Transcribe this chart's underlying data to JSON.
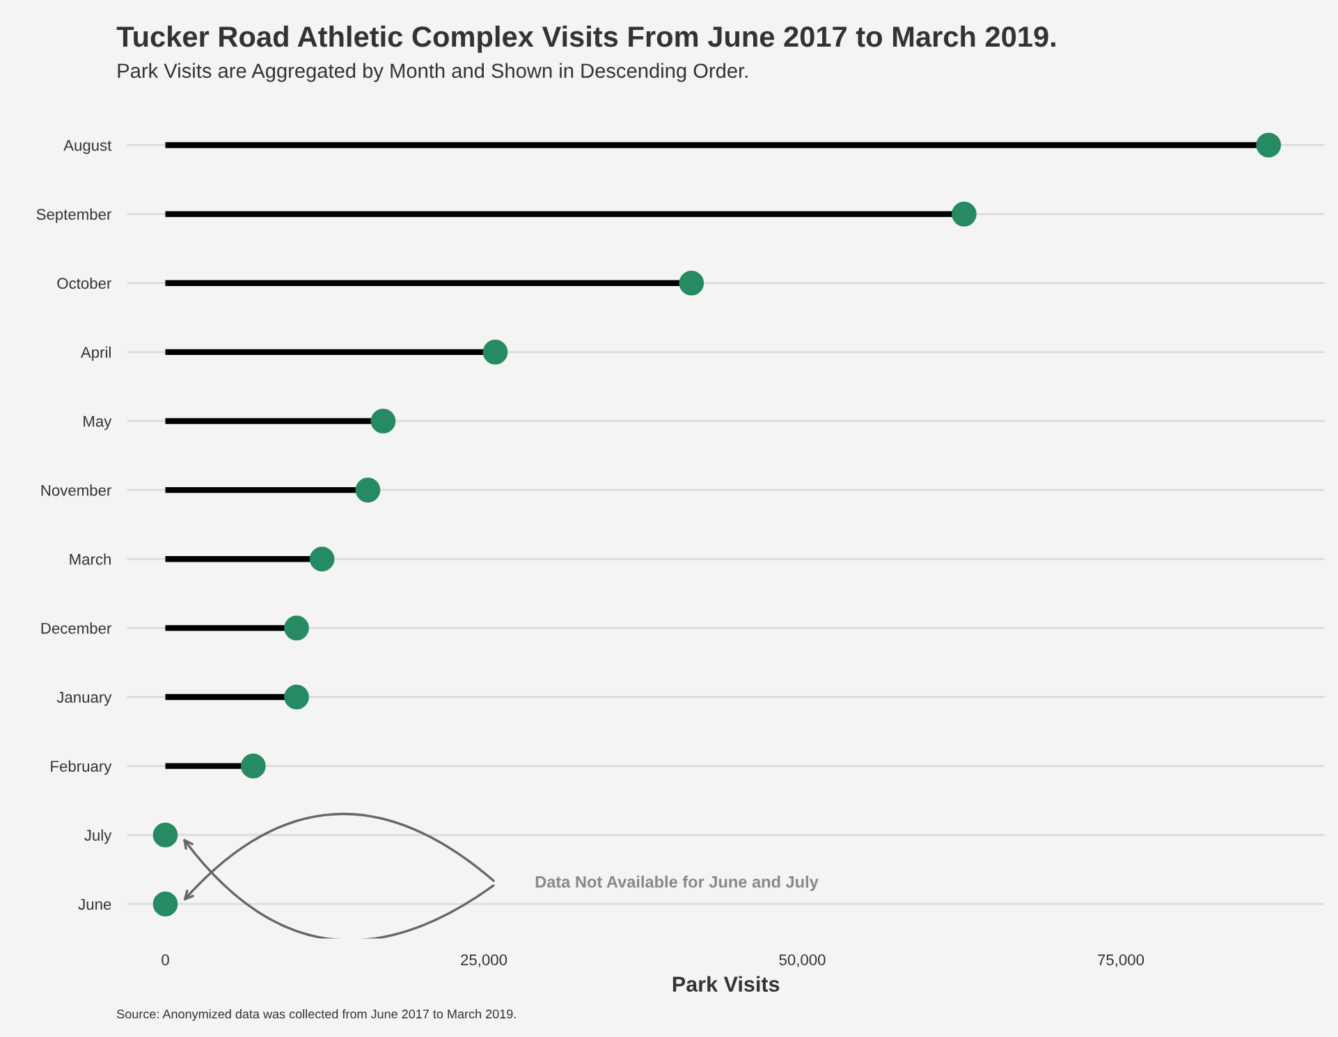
{
  "chart_data": {
    "type": "lollipop",
    "orientation": "horizontal",
    "title": "Tucker Road Athletic Complex Visits From June 2017 to March 2019.",
    "subtitle": "Park Visits are Aggregated by Month and Shown in Descending Order.",
    "xlabel": "Park Visits",
    "categories": [
      "August",
      "September",
      "October",
      "April",
      "May",
      "November",
      "March",
      "December",
      "January",
      "February",
      "July",
      "June"
    ],
    "values": [
      86600,
      62700,
      41300,
      25900,
      17100,
      15900,
      12300,
      10300,
      10300,
      6900,
      0,
      0
    ],
    "color": "#268a63",
    "xlim": [
      -3000,
      91000
    ],
    "xticks": [
      0,
      {
        "value": 25000,
        "label": "25,000"
      },
      {
        "value": 50000,
        "label": "50,000"
      },
      {
        "value": 75000,
        "label": "75,000"
      }
    ],
    "grid": "y",
    "annotations": [
      "Data Not Available for June and July",
      "Source: Anonymized data was collected from June 2017 to March 2019."
    ]
  }
}
